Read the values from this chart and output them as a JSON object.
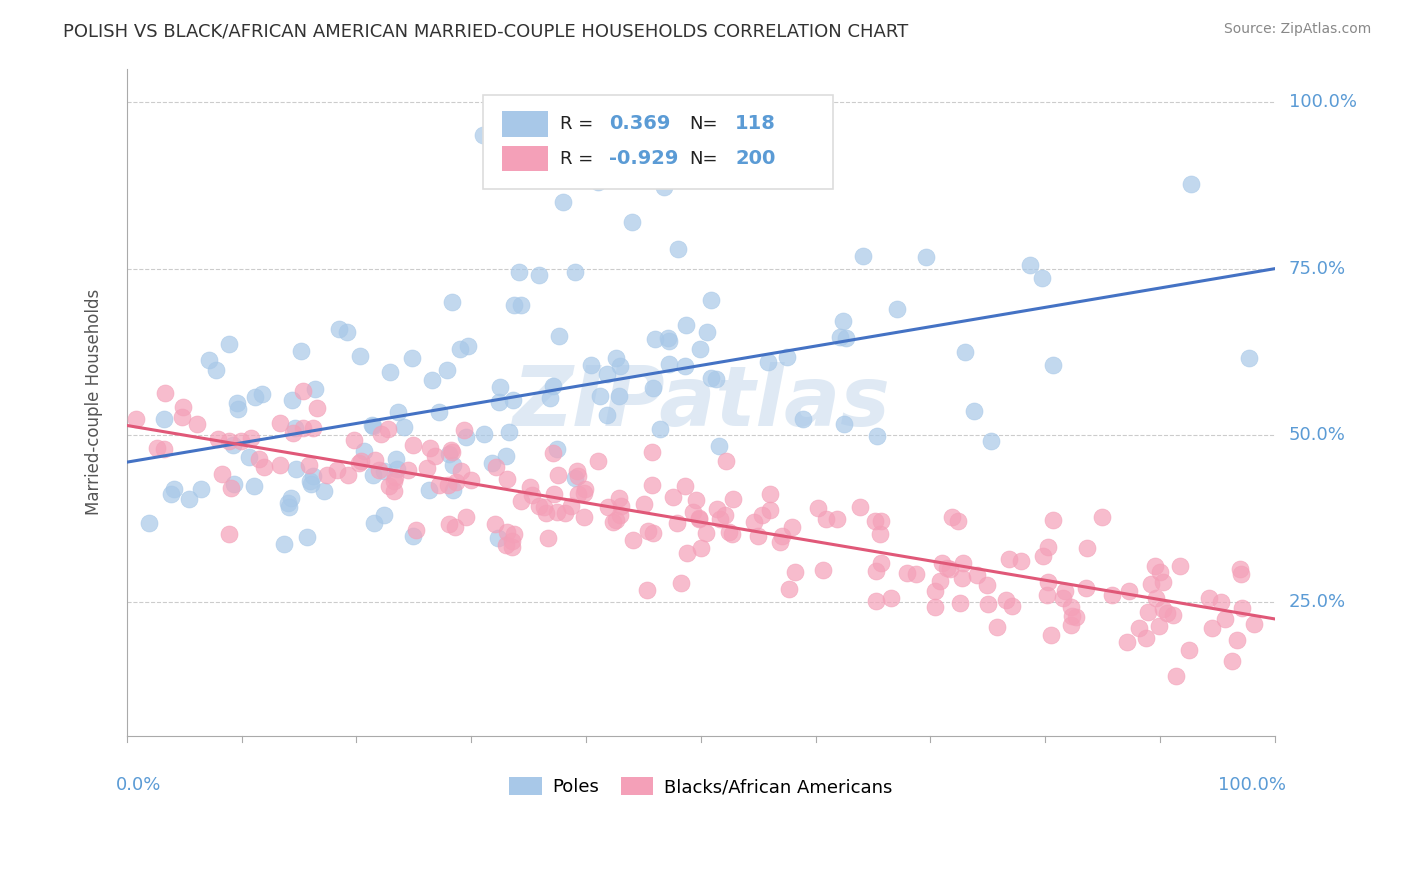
{
  "title": "POLISH VS BLACK/AFRICAN AMERICAN MARRIED-COUPLE HOUSEHOLDS CORRELATION CHART",
  "source": "Source: ZipAtlas.com",
  "ylabel": "Married-couple Households",
  "xlim": [
    0.0,
    1.0
  ],
  "ylim": [
    0.05,
    1.05
  ],
  "xtick_labels": [
    "0.0%",
    "100.0%"
  ],
  "ytick_labels": [
    "25.0%",
    "50.0%",
    "75.0%",
    "100.0%"
  ],
  "ytick_positions": [
    0.25,
    0.5,
    0.75,
    1.0
  ],
  "blue_R": 0.369,
  "blue_N": 118,
  "pink_R": -0.929,
  "pink_N": 200,
  "blue_color": "#a8c8e8",
  "pink_color": "#f4a0b8",
  "blue_line_color": "#4472c4",
  "pink_line_color": "#e05878",
  "title_color": "#333333",
  "source_color": "#888888",
  "label_color": "#5b9bd5",
  "background_color": "#ffffff",
  "grid_color": "#cccccc",
  "blue_line_x0": 0.0,
  "blue_line_y0": 0.46,
  "blue_line_x1": 1.0,
  "blue_line_y1": 0.75,
  "pink_line_x0": 0.0,
  "pink_line_y0": 0.515,
  "pink_line_x1": 1.0,
  "pink_line_y1": 0.225,
  "watermark": "ZIPatlas",
  "legend_labels": [
    "Poles",
    "Blacks/African Americans"
  ],
  "blue_seed": 42,
  "pink_seed": 17
}
